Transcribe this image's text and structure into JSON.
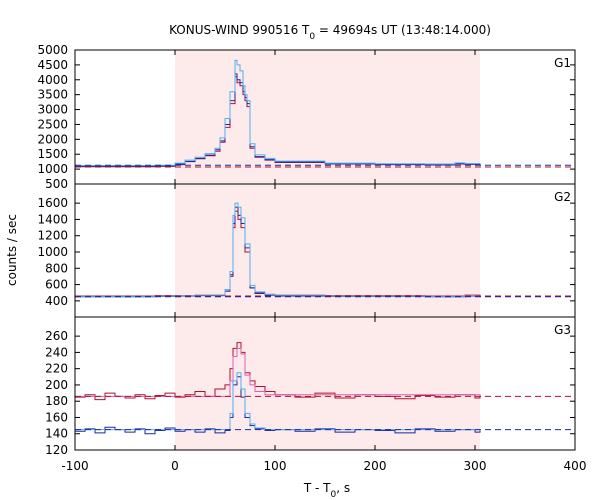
{
  "chart_data": {
    "type": "line",
    "title_main": "KONUS-WIND 990516 T",
    "title_sub": "0",
    "title_rest": " = 49694s UT (13:48:14.000)",
    "xlabel_main": "T - T",
    "xlabel_sub": "0",
    "xlabel_rest": ", s",
    "ylabel": "counts / sec",
    "xlim": [
      -100,
      400
    ],
    "xticks": [
      "-100",
      "0",
      "100",
      "200",
      "300",
      "400"
    ],
    "highlight_interval": [
      0,
      305
    ],
    "colors": {
      "highlight": "#fdeaea",
      "dark_red": "#b01030",
      "magenta": "#e060b0",
      "dark_blue": "#1a2aa0",
      "light_blue": "#50b0f0"
    },
    "panels": [
      {
        "label": "G1",
        "ylim": [
          500,
          5000
        ],
        "yticks": [
          "500",
          "1000",
          "1500",
          "2000",
          "2500",
          "3000",
          "3500",
          "4000",
          "4500",
          "5000"
        ],
        "background_levels": {
          "red": 1070,
          "blue": 1130
        },
        "series": [
          {
            "color": "dark_red",
            "x": [
              -100,
              -60,
              -20,
              0,
              10,
              20,
              30,
              40,
              45,
              50,
              55,
              60,
              62,
              65,
              68,
              70,
              72,
              75,
              80,
              90,
              100,
              150,
              200,
              250,
              280,
              290,
              305
            ],
            "y": [
              1080,
              1080,
              1090,
              1150,
              1250,
              1350,
              1450,
              1600,
              1900,
              2400,
              3200,
              4100,
              3900,
              3800,
              3500,
              3300,
              3100,
              1700,
              1400,
              1300,
              1220,
              1170,
              1150,
              1140,
              1170,
              1160,
              1140
            ]
          },
          {
            "color": "dark_blue",
            "x": [
              -100,
              -60,
              -20,
              0,
              10,
              20,
              30,
              40,
              45,
              50,
              55,
              60,
              62,
              65,
              68,
              70,
              72,
              75,
              80,
              90,
              100,
              150,
              200,
              250,
              280,
              290,
              305
            ],
            "y": [
              1100,
              1100,
              1110,
              1170,
              1260,
              1360,
              1470,
              1650,
              1950,
              2500,
              3300,
              4200,
              4000,
              3900,
              3600,
              3400,
              3200,
              1750,
              1420,
              1320,
              1240,
              1180,
              1160,
              1150,
              1190,
              1170,
              1150
            ]
          },
          {
            "color": "light_blue",
            "x": [
              -100,
              -60,
              -20,
              0,
              10,
              20,
              30,
              40,
              45,
              50,
              55,
              60,
              62,
              65,
              68,
              70,
              72,
              75,
              80,
              90,
              100,
              150,
              200,
              250,
              280,
              290,
              305
            ],
            "y": [
              1120,
              1120,
              1130,
              1200,
              1300,
              1400,
              1520,
              1700,
              2050,
              2700,
              3600,
              4650,
              4500,
              4300,
              3800,
              3500,
              3300,
              1850,
              1480,
              1360,
              1270,
              1200,
              1180,
              1170,
              1210,
              1190,
              1170
            ]
          }
        ]
      },
      {
        "label": "G2",
        "ylim": [
          300,
          1700
        ],
        "yticks": [
          "400",
          "600",
          "800",
          "1000",
          "1200",
          "1400",
          "1600"
        ],
        "background_levels": {
          "red": 460,
          "blue": 450
        },
        "series": [
          {
            "color": "dark_red",
            "x": [
              -100,
              -60,
              -20,
              0,
              20,
              40,
              50,
              55,
              58,
              60,
              63,
              66,
              70,
              75,
              80,
              90,
              100,
              150,
              200,
              250,
              290,
              305
            ],
            "y": [
              460,
              460,
              465,
              465,
              470,
              470,
              520,
              700,
              1300,
              1500,
              1400,
              1300,
              1000,
              560,
              500,
              480,
              470,
              465,
              465,
              460,
              470,
              460
            ]
          },
          {
            "color": "dark_blue",
            "x": [
              -100,
              -60,
              -20,
              0,
              20,
              40,
              50,
              55,
              58,
              60,
              63,
              66,
              70,
              75,
              80,
              90,
              100,
              150,
              200,
              250,
              290,
              305
            ],
            "y": [
              450,
              450,
              455,
              460,
              465,
              465,
              520,
              720,
              1350,
              1550,
              1450,
              1350,
              1050,
              560,
              490,
              470,
              460,
              455,
              455,
              450,
              460,
              450
            ]
          },
          {
            "color": "light_blue",
            "x": [
              -100,
              -60,
              -20,
              0,
              20,
              40,
              50,
              55,
              58,
              60,
              63,
              66,
              70,
              75,
              80,
              90,
              100,
              150,
              200,
              250,
              290,
              305
            ],
            "y": [
              455,
              455,
              460,
              465,
              470,
              470,
              540,
              760,
              1450,
              1600,
              1550,
              1420,
              1100,
              590,
              510,
              480,
              470,
              460,
              460,
              455,
              465,
              455
            ]
          }
        ]
      },
      {
        "label": "G3",
        "ylim": [
          120,
          270
        ],
        "yticks": [
          "120",
          "140",
          "160",
          "180",
          "200",
          "220",
          "240",
          "260"
        ],
        "background_levels": {
          "red": 186,
          "blue": 145
        },
        "series": [
          {
            "color": "dark_red",
            "x": [
              -100,
              -90,
              -80,
              -70,
              -60,
              -50,
              -40,
              -30,
              -20,
              -10,
              0,
              10,
              20,
              30,
              40,
              50,
              55,
              58,
              62,
              66,
              70,
              75,
              80,
              90,
              100,
              120,
              140,
              160,
              180,
              200,
              220,
              240,
              260,
              280,
              300,
              305
            ],
            "y": [
              185,
              188,
              182,
              190,
              186,
              184,
              188,
              183,
              187,
              190,
              185,
              188,
              192,
              186,
              195,
              200,
              220,
              245,
              252,
              240,
              215,
              205,
              198,
              192,
              188,
              185,
              190,
              184,
              188,
              186,
              183,
              187,
              185,
              188,
              184,
              186
            ]
          },
          {
            "color": "magenta",
            "x": [
              -100,
              50,
              55,
              58,
              62,
              66,
              70,
              75,
              80,
              90,
              305
            ],
            "y": [
              186,
              186,
              205,
              235,
              245,
              238,
              212,
              200,
              192,
              188,
              186
            ]
          },
          {
            "color": "dark_blue",
            "x": [
              -100,
              -90,
              -80,
              -70,
              -60,
              -50,
              -40,
              -30,
              -20,
              -10,
              0,
              10,
              20,
              30,
              40,
              50,
              55,
              58,
              62,
              66,
              70,
              75,
              80,
              90,
              100,
              120,
              140,
              160,
              180,
              200,
              220,
              240,
              260,
              280,
              300,
              305
            ],
            "y": [
              143,
              146,
              141,
              148,
              145,
              142,
              146,
              140,
              144,
              147,
              143,
              145,
              142,
              146,
              141,
              144,
              160,
              200,
              210,
              185,
              160,
              150,
              146,
              144,
              145,
              143,
              146,
              142,
              145,
              144,
              141,
              146,
              143,
              145,
              142,
              144
            ]
          },
          {
            "color": "light_blue",
            "x": [
              -100,
              50,
              55,
              58,
              62,
              66,
              70,
              75,
              80,
              90,
              305
            ],
            "y": [
              145,
              145,
              165,
              205,
              215,
              195,
              165,
              152,
              147,
              145,
              145
            ]
          }
        ]
      }
    ]
  }
}
